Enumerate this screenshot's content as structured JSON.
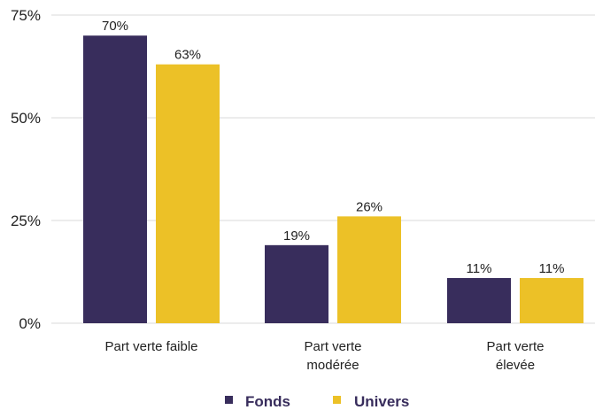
{
  "chart_data": {
    "type": "bar",
    "categories": [
      [
        "Part verte faible"
      ],
      [
        "Part verte",
        "modérée"
      ],
      [
        "Part verte",
        "élevée"
      ]
    ],
    "series": [
      {
        "name": "Fonds",
        "values": [
          70,
          19,
          11
        ],
        "labels": [
          "70%",
          "19%",
          "11%"
        ],
        "color": "#382d5c"
      },
      {
        "name": "Univers",
        "values": [
          63,
          26,
          11
        ],
        "labels": [
          "63%",
          "26%",
          "11%"
        ],
        "color": "#ecc127"
      }
    ],
    "yticks": [
      0,
      25,
      50,
      75
    ],
    "ytick_labels": [
      "0%",
      "25%",
      "50%",
      "75%"
    ],
    "ylim": [
      0,
      75
    ],
    "grid": true,
    "legend_position": "bottom-center",
    "colors": {
      "grid": "#d9d9d9",
      "text": "#222222",
      "legend_text": "#382d5c"
    }
  }
}
